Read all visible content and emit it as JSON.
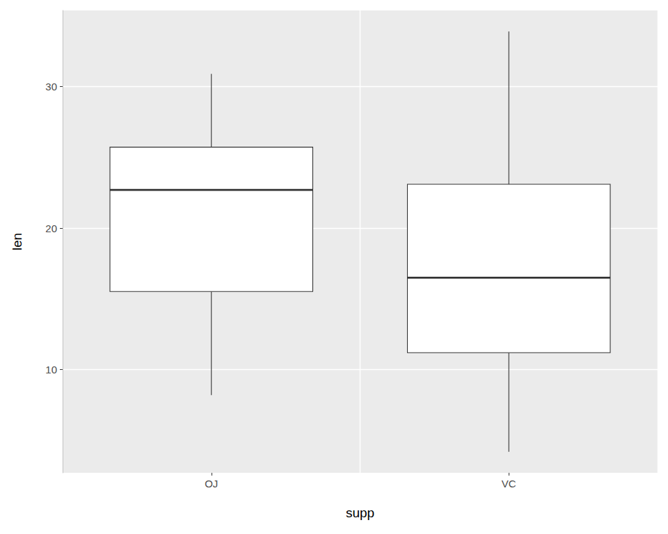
{
  "chart_data": {
    "type": "boxplot",
    "x_label": "supp",
    "y_label": "len",
    "categories": [
      "OJ",
      "VC"
    ],
    "values": [
      [
        8.2,
        15.525,
        22.7,
        25.725,
        30.9
      ],
      [
        4.2,
        11.2,
        16.5,
        23.1,
        33.9
      ]
    ],
    "color": "#ffffff",
    "ylim": [
      2.715,
      35.385
    ],
    "yticks": [
      10,
      20,
      30
    ],
    "grid": true
  }
}
